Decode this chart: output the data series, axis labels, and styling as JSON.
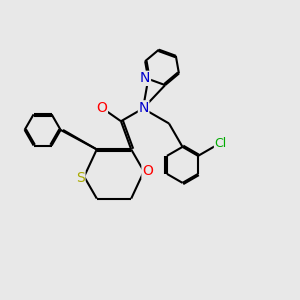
{
  "background_color": "#e8e8e8",
  "atom_colors": {
    "C": "#000000",
    "N": "#0000cc",
    "O": "#ff0000",
    "S": "#aaaa00",
    "Cl": "#00aa00"
  },
  "bond_color": "#000000",
  "bond_width": 1.5,
  "dbo": 0.07,
  "fs": 10
}
